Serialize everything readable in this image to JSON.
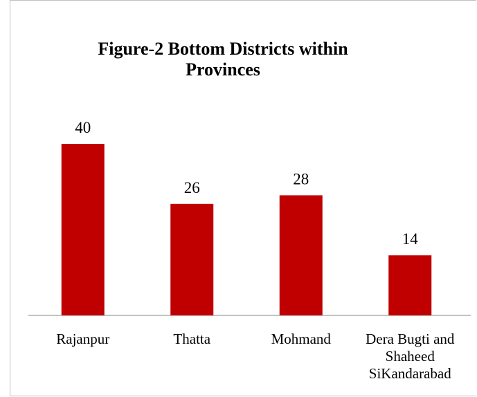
{
  "chart_data": {
    "type": "bar",
    "title": "Figure-2 Bottom Districts within Provinces",
    "categories": [
      "Rajanpur",
      "Thatta",
      "Mohmand",
      "Dera Bugti and Shaheed SiKandarabad"
    ],
    "values": [
      40,
      26,
      28,
      14
    ],
    "color": "#c00000"
  }
}
